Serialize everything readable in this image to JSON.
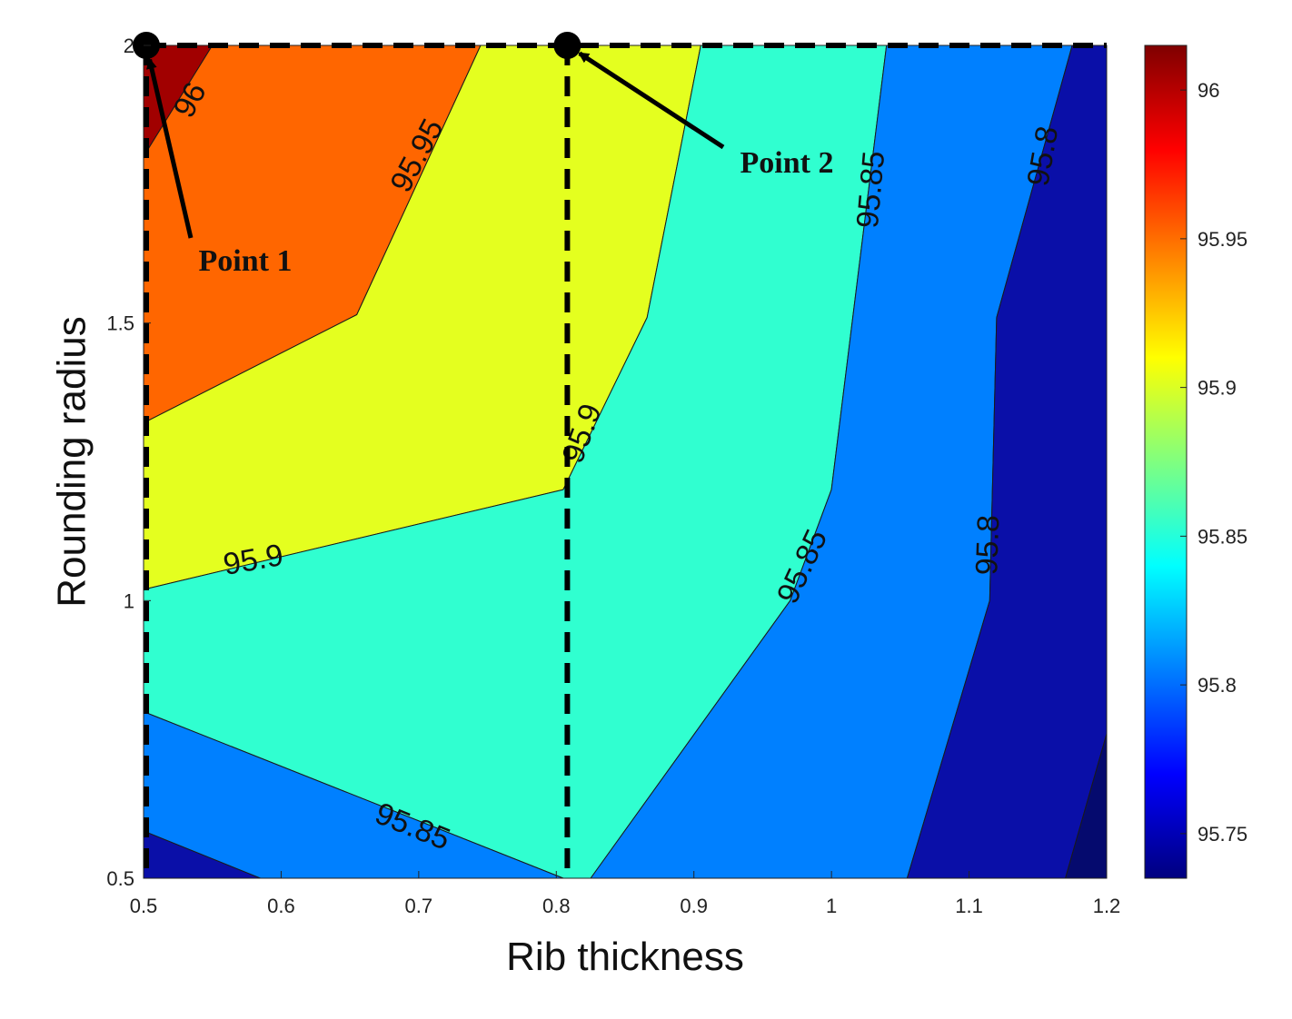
{
  "chart_data": {
    "type": "contour",
    "xlabel": "Rib thickness",
    "ylabel": "Rounding radius",
    "xlim": [
      0.5,
      1.2
    ],
    "ylim": [
      0.5,
      2
    ],
    "x_ticks": [
      "0.5",
      "0.6",
      "0.7",
      "0.8",
      "0.9",
      "1",
      "1.1",
      "1.2"
    ],
    "y_ticks": [
      "0.5",
      "1",
      "1.5",
      "2"
    ],
    "levels": [
      95.75,
      95.8,
      95.85,
      95.9,
      95.95,
      96
    ],
    "regions": [
      {
        "range": [
          96.0,
          96.02
        ],
        "color": "#A10000",
        "points": [
          [
            0.5,
            2.0
          ],
          [
            0.55,
            2.0
          ],
          [
            0.5,
            1.8
          ]
        ]
      },
      {
        "range": [
          95.95,
          96.0
        ],
        "color": "#FF6600",
        "points": [
          [
            0.55,
            2.0
          ],
          [
            0.745,
            2.0
          ],
          [
            0.655,
            1.515
          ],
          [
            0.5,
            1.32
          ],
          [
            0.5,
            1.8
          ]
        ]
      },
      {
        "range": [
          95.9,
          95.95
        ],
        "color": "#E4FF1F",
        "points": [
          [
            0.745,
            2.0
          ],
          [
            0.905,
            2.0
          ],
          [
            0.866,
            1.51
          ],
          [
            0.805,
            1.2
          ],
          [
            0.5,
            1.02
          ],
          [
            0.5,
            1.32
          ],
          [
            0.655,
            1.515
          ]
        ]
      },
      {
        "range": [
          95.85,
          95.9
        ],
        "color": "#30FFD0",
        "points": [
          [
            0.905,
            2.0
          ],
          [
            1.04,
            2.0
          ],
          [
            1.0,
            1.2
          ],
          [
            0.97,
            1.0
          ],
          [
            0.825,
            0.5
          ],
          [
            0.805,
            0.5
          ],
          [
            0.5,
            0.8
          ],
          [
            0.5,
            1.02
          ],
          [
            0.805,
            1.2
          ],
          [
            0.866,
            1.51
          ]
        ]
      },
      {
        "range": [
          95.8,
          95.85
        ],
        "color": "#0080FF",
        "points": [
          [
            1.04,
            2.0
          ],
          [
            1.175,
            2.0
          ],
          [
            1.12,
            1.51
          ],
          [
            1.115,
            1.0
          ],
          [
            1.055,
            0.5
          ],
          [
            0.825,
            0.5
          ],
          [
            0.97,
            1.0
          ],
          [
            1.0,
            1.2
          ]
        ]
      },
      {
        "range": [
          95.75,
          95.8
        ],
        "color": "#0A0FA8",
        "points": [
          [
            1.175,
            2.0
          ],
          [
            1.2,
            2.0
          ],
          [
            1.2,
            0.76
          ],
          [
            1.17,
            0.5
          ],
          [
            1.055,
            0.5
          ],
          [
            1.115,
            1.0
          ],
          [
            1.12,
            1.51
          ]
        ]
      },
      {
        "range": [
          95.8,
          95.85
        ],
        "color": "#0080FF",
        "points": [
          [
            0.5,
            0.8
          ],
          [
            0.805,
            0.5
          ],
          [
            0.5,
            0.5
          ]
        ]
      },
      {
        "range": [
          95.75,
          95.8
        ],
        "color": "#0A0FA8",
        "points": [
          [
            0.5,
            0.585
          ],
          [
            0.585,
            0.5
          ],
          [
            0.5,
            0.5
          ]
        ]
      },
      {
        "range": [
          95.7,
          95.75
        ],
        "color": "#050A6E",
        "points": [
          [
            1.2,
            0.76
          ],
          [
            1.2,
            0.5
          ],
          [
            1.17,
            0.5
          ]
        ]
      }
    ],
    "contour_labels": [
      {
        "text": "96",
        "x": 0.535,
        "y": 1.9,
        "angle": -62
      },
      {
        "text": "95.95",
        "x": 0.7,
        "y": 1.8,
        "angle": -62
      },
      {
        "text": "95.9",
        "x": 0.58,
        "y": 1.07,
        "angle": -10
      },
      {
        "text": "95.9",
        "x": 0.82,
        "y": 1.3,
        "angle": -70
      },
      {
        "text": "95.85",
        "x": 1.03,
        "y": 1.74,
        "angle": -85
      },
      {
        "text": "95.85",
        "x": 0.98,
        "y": 1.06,
        "angle": -65
      },
      {
        "text": "95.85",
        "x": 0.695,
        "y": 0.59,
        "angle": 22
      },
      {
        "text": "95.8",
        "x": 1.155,
        "y": 1.8,
        "angle": -80
      },
      {
        "text": "95.8",
        "x": 1.115,
        "y": 1.1,
        "angle": -88
      }
    ],
    "annotations": [
      {
        "text": "Point 1",
        "point": [
          0.502,
          2.0
        ]
      },
      {
        "text": "Point 2",
        "point": [
          0.808,
          2.0
        ]
      }
    ],
    "colorbar": {
      "ticks": [
        "95.75",
        "95.8",
        "95.85",
        "95.9",
        "95.95",
        "96"
      ],
      "range": [
        95.735,
        96.015
      ],
      "colormap": "jet"
    }
  }
}
